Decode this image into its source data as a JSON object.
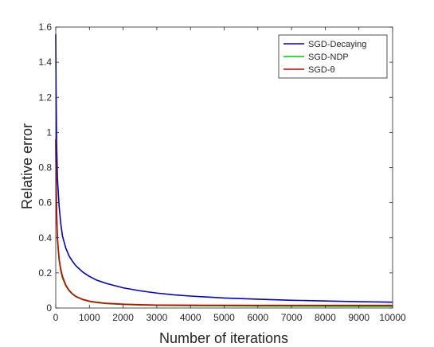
{
  "chart_data": {
    "type": "line",
    "title": "",
    "xlabel": "Number of iterations",
    "ylabel": "Relative error",
    "xlim": [
      0,
      10000
    ],
    "ylim": [
      0,
      1.6
    ],
    "xticks": [
      0,
      1000,
      2000,
      3000,
      4000,
      5000,
      6000,
      7000,
      8000,
      9000,
      10000
    ],
    "yticks": [
      0,
      0.2,
      0.4,
      0.6,
      0.8,
      1,
      1.2,
      1.4,
      1.6
    ],
    "xtick_labels": [
      "0",
      "1000",
      "2000",
      "3000",
      "4000",
      "5000",
      "6000",
      "7000",
      "8000",
      "9000",
      "10000"
    ],
    "ytick_labels": [
      "0",
      "0.2",
      "0.4",
      "0.6",
      "0.8",
      "1",
      "1.2",
      "1.4",
      "1.6"
    ],
    "grid": false,
    "legend_position": "top-right",
    "series": [
      {
        "name": "SGD-Decaying",
        "color": "#0000cc",
        "x": [
          0,
          10,
          25,
          50,
          100,
          150,
          200,
          300,
          400,
          500,
          600,
          800,
          1000,
          1200,
          1500,
          2000,
          2500,
          3000,
          3500,
          4000,
          5000,
          6000,
          7000,
          8000,
          9000,
          10000
        ],
        "y": [
          1.56,
          1.25,
          0.95,
          0.74,
          0.58,
          0.48,
          0.41,
          0.34,
          0.295,
          0.265,
          0.24,
          0.205,
          0.18,
          0.16,
          0.14,
          0.115,
          0.098,
          0.085,
          0.075,
          0.068,
          0.057,
          0.05,
          0.044,
          0.04,
          0.036,
          0.033
        ]
      },
      {
        "name": "SGD-NDP",
        "color": "#00cc00",
        "x": [
          0,
          10,
          25,
          50,
          100,
          150,
          200,
          300,
          400,
          500,
          600,
          800,
          1000,
          1200,
          1500,
          2000,
          2500,
          3000,
          4000,
          5000,
          6000,
          7000,
          8000,
          9000,
          10000
        ],
        "y": [
          0.96,
          0.74,
          0.55,
          0.39,
          0.27,
          0.21,
          0.17,
          0.125,
          0.097,
          0.078,
          0.064,
          0.047,
          0.037,
          0.031,
          0.025,
          0.02,
          0.017,
          0.015,
          0.013,
          0.012,
          0.011,
          0.0105,
          0.01,
          0.0095,
          0.009
        ]
      },
      {
        "name": "SGD-θ",
        "color": "#cc0000",
        "x": [
          0,
          10,
          25,
          50,
          100,
          150,
          200,
          300,
          400,
          500,
          600,
          800,
          1000,
          1200,
          1500,
          2000,
          2500,
          3000,
          4000,
          5000,
          6000,
          7000,
          8000,
          9000,
          10000
        ],
        "y": [
          0.96,
          0.75,
          0.56,
          0.4,
          0.28,
          0.22,
          0.18,
          0.13,
          0.1,
          0.08,
          0.066,
          0.049,
          0.039,
          0.033,
          0.027,
          0.022,
          0.019,
          0.017,
          0.016,
          0.0155,
          0.015,
          0.015,
          0.015,
          0.015,
          0.015
        ]
      }
    ]
  }
}
